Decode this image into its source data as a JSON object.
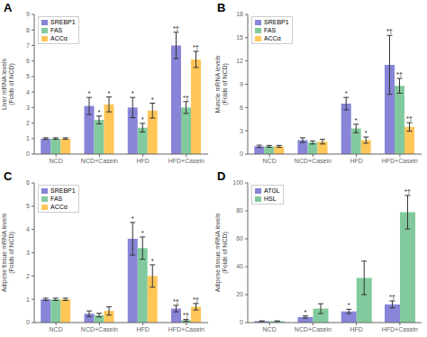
{
  "chart_data": [
    {
      "type": "bar",
      "title": "A",
      "y_label": "Liver mRNA levels\n(Folds of NCD)",
      "categories": [
        "NCD",
        "NCD+Casein",
        "HFD",
        "HFD+Casein"
      ],
      "ylim": [
        0,
        9
      ],
      "yticks": [
        0,
        1,
        2,
        3,
        4,
        5,
        6,
        7,
        8,
        9
      ],
      "legend": "upper left",
      "series": [
        {
          "name": "SREBP1",
          "color": "#8884d8",
          "values": [
            1.0,
            3.1,
            3.0,
            7.0
          ],
          "errors": [
            0.05,
            0.55,
            0.65,
            0.85
          ],
          "annotations": [
            null,
            "*",
            "*",
            "*†"
          ]
        },
        {
          "name": "FAS",
          "color": "#82ca9d",
          "values": [
            1.0,
            2.2,
            1.7,
            3.0
          ],
          "errors": [
            0.05,
            0.25,
            0.28,
            0.38
          ],
          "annotations": [
            null,
            "*",
            "*",
            "*†"
          ]
        },
        {
          "name": "ACCα",
          "color": "#ffc658",
          "values": [
            1.0,
            3.2,
            2.8,
            6.1
          ],
          "errors": [
            0.05,
            0.48,
            0.48,
            0.52
          ],
          "annotations": [
            null,
            "*",
            "*",
            "*†"
          ]
        }
      ]
    },
    {
      "type": "bar",
      "title": "B",
      "y_label": "Muscle mRNA levels\n(Folds of NCD)",
      "categories": [
        "NCD",
        "NCD+Casein",
        "HFD",
        "HFD+Casein"
      ],
      "ylim": [
        0,
        18
      ],
      "yticks": [
        0,
        3,
        6,
        9,
        12,
        15,
        18
      ],
      "legend": "upper left",
      "series": [
        {
          "name": "SREBP1",
          "color": "#8884d8",
          "values": [
            1.0,
            1.8,
            6.5,
            11.5
          ],
          "errors": [
            0.15,
            0.3,
            0.8,
            3.8
          ],
          "annotations": [
            null,
            null,
            "*",
            "*†"
          ]
        },
        {
          "name": "FAS",
          "color": "#82ca9d",
          "values": [
            1.0,
            1.5,
            3.3,
            8.8
          ],
          "errors": [
            0.12,
            0.2,
            0.55,
            0.95
          ],
          "annotations": [
            null,
            null,
            "*",
            "*†"
          ]
        },
        {
          "name": "ACCα",
          "color": "#ffc658",
          "values": [
            1.0,
            1.6,
            1.8,
            3.5
          ],
          "errors": [
            0.12,
            0.3,
            0.4,
            0.55
          ],
          "annotations": [
            null,
            null,
            "*",
            "*†"
          ]
        }
      ]
    },
    {
      "type": "bar",
      "title": "C",
      "y_label": "Adipose tissue mRNA levels\n(Folds of NCD)",
      "categories": [
        "NCD",
        "NCD+Casein",
        "HFD",
        "HFD+Casein"
      ],
      "ylim": [
        0,
        6
      ],
      "yticks": [
        0,
        1,
        2,
        3,
        4,
        5,
        6
      ],
      "legend": "upper left",
      "series": [
        {
          "name": "SREBP1",
          "color": "#8884d8",
          "values": [
            1.0,
            0.38,
            3.6,
            0.6
          ],
          "errors": [
            0.05,
            0.12,
            0.7,
            0.14
          ],
          "annotations": [
            null,
            null,
            "*",
            "*†"
          ]
        },
        {
          "name": "FAS",
          "color": "#82ca9d",
          "values": [
            1.0,
            0.32,
            3.2,
            0.1
          ],
          "errors": [
            0.05,
            0.08,
            0.48,
            0.04
          ],
          "annotations": [
            null,
            null,
            "*",
            "*†"
          ]
        },
        {
          "name": "ACCα",
          "color": "#ffc658",
          "values": [
            1.0,
            0.5,
            2.0,
            0.68
          ],
          "errors": [
            0.05,
            0.18,
            0.48,
            0.14
          ],
          "annotations": [
            null,
            null,
            "*",
            "*†"
          ]
        }
      ]
    },
    {
      "type": "bar",
      "title": "D",
      "y_label": "Adipose tissue mRNA levels\n(Folds of NCD)",
      "categories": [
        "NCD",
        "NCD+Casein",
        "HFD",
        "HFD+Casein"
      ],
      "ylim": [
        0,
        100
      ],
      "yticks": [
        0,
        20,
        40,
        60,
        80,
        100
      ],
      "legend": "upper left",
      "series": [
        {
          "name": "ATGL",
          "color": "#8884d8",
          "values": [
            1.0,
            4.0,
            8.0,
            13.0
          ],
          "errors": [
            0.2,
            0.8,
            1.5,
            2.5
          ],
          "annotations": [
            null,
            "*",
            "*",
            "*†"
          ]
        },
        {
          "name": "HSL",
          "color": "#82ca9d",
          "values": [
            1.0,
            10.0,
            32.0,
            79.0
          ],
          "errors": [
            0.2,
            3.5,
            12.0,
            12.0
          ],
          "annotations": [
            null,
            null,
            null,
            "*†"
          ]
        }
      ]
    }
  ]
}
